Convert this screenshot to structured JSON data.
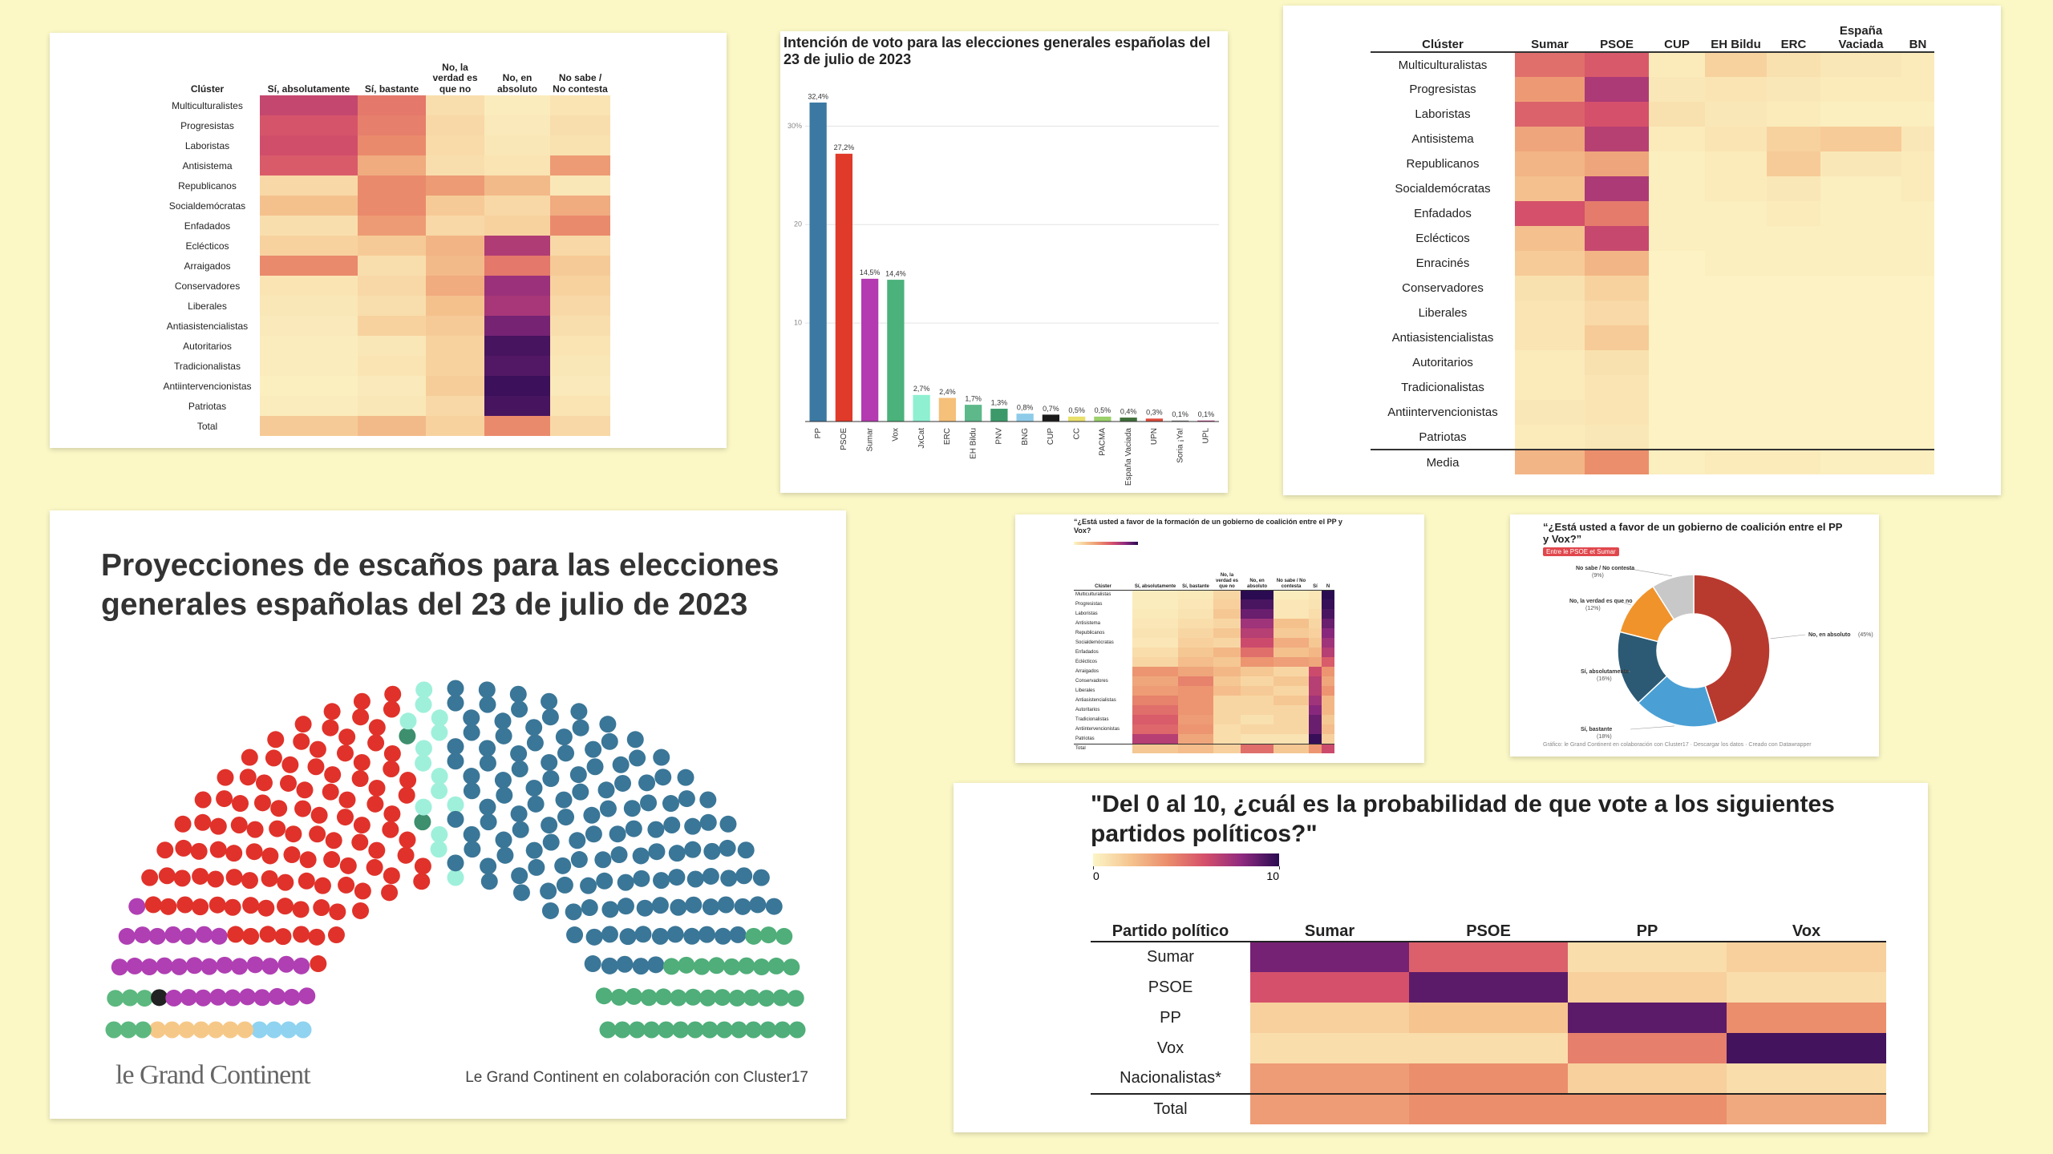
{
  "chart_data": [
    {
      "type": "heatmap",
      "row_header": "Clúster",
      "columns": [
        "Sí, absolutamente",
        "Sí, bastante",
        "No, la verdad es que no",
        "No, en absoluto",
        "No sabe / No contesta"
      ],
      "rows": [
        "Multiculturalistes",
        "Progresistas",
        "Laboristas",
        "Antisistema",
        "Republicanos",
        "Socialdemócratas",
        "Enfadados",
        "Eclécticos",
        "Arraigados",
        "Conservadores",
        "Liberales",
        "Antiasistencialistas",
        "Autoritarios",
        "Tradicionalistas",
        "Antiintervencionistas",
        "Patriotas",
        "Total"
      ],
      "values": [
        [
          55,
          40,
          8,
          3,
          6
        ],
        [
          50,
          38,
          10,
          4,
          8
        ],
        [
          52,
          35,
          9,
          5,
          7
        ],
        [
          48,
          25,
          8,
          6,
          30
        ],
        [
          10,
          35,
          30,
          20,
          5
        ],
        [
          18,
          35,
          15,
          10,
          25
        ],
        [
          8,
          30,
          10,
          12,
          35
        ],
        [
          12,
          15,
          22,
          60,
          10
        ],
        [
          35,
          8,
          20,
          40,
          15
        ],
        [
          6,
          10,
          25,
          65,
          12
        ],
        [
          5,
          8,
          18,
          62,
          10
        ],
        [
          4,
          12,
          15,
          72,
          8
        ],
        [
          3,
          5,
          12,
          80,
          6
        ],
        [
          3,
          6,
          12,
          78,
          5
        ],
        [
          2,
          4,
          14,
          82,
          4
        ],
        [
          3,
          5,
          10,
          80,
          6
        ],
        [
          15,
          20,
          12,
          35,
          10
        ]
      ],
      "color_range": [
        0,
        85
      ],
      "colors": [
        "#fcf5c7",
        "#f5c48f",
        "#eb8e6c",
        "#d5506a",
        "#8e2a7f",
        "#2a0b52"
      ]
    },
    {
      "type": "bar",
      "title": "Intención de voto para las elecciones generales españolas del 23 de julio de 2023",
      "categories": [
        "PP",
        "PSOE",
        "Sumar",
        "Vox",
        "JxCat",
        "ERC",
        "EH Bildu",
        "PNV",
        "BNG",
        "CUP",
        "CC",
        "PACMA",
        "España Vaciada",
        "UPN",
        "Soria ¡Ya!",
        "UPL"
      ],
      "values": [
        32.4,
        27.2,
        14.5,
        14.4,
        2.7,
        2.4,
        1.7,
        1.3,
        0.8,
        0.7,
        0.5,
        0.5,
        0.4,
        0.3,
        0.1,
        0.1
      ],
      "value_labels": [
        "32,4%",
        "27,2%",
        "14,5%",
        "14,4%",
        "2,7%",
        "2,4%",
        "1,7%",
        "1,3%",
        "0,8%",
        "0,7%",
        "0,5%",
        "0,5%",
        "0,4%",
        "0,3%",
        "0,1%",
        "0,1%"
      ],
      "colors": [
        "#3b79a3",
        "#e03a2a",
        "#b33ab0",
        "#4ab27a",
        "#8ef0d0",
        "#f5c07a",
        "#5db88a",
        "#3c9a6a",
        "#8ecbe8",
        "#1a1a1a",
        "#e8e06a",
        "#9bd06a",
        "#3f6e3a",
        "#e04a3a",
        "#777777",
        "#b0337a"
      ],
      "ylim": [
        0,
        35
      ],
      "yticks": [
        10,
        20,
        {
          "value": 30,
          "label": "30%"
        }
      ],
      "grid": true
    },
    {
      "type": "heatmap",
      "row_header": "Clúster",
      "columns": [
        "Sumar",
        "PSOE",
        "CUP",
        "EH Bildu",
        "ERC",
        "España Vaciada",
        "BN"
      ],
      "rows": [
        "Multiculturalistas",
        "Progresistas",
        "Laboristas",
        "Antisistema",
        "Republicanos",
        "Socialdemócratas",
        "Enfadados",
        "Eclécticos",
        "Enracinés",
        "Conservadores",
        "Liberales",
        "Antiasistencialistas",
        "Autoritarios",
        "Tradicionalistas",
        "Antiintervencionistas",
        "Patriotas",
        "Media"
      ],
      "values": [
        [
          35,
          40,
          3,
          10,
          6,
          4,
          3
        ],
        [
          25,
          50,
          4,
          5,
          4,
          3,
          3
        ],
        [
          38,
          42,
          6,
          4,
          3,
          2,
          2
        ],
        [
          22,
          48,
          3,
          5,
          10,
          12,
          4
        ],
        [
          18,
          22,
          2,
          3,
          12,
          4,
          3
        ],
        [
          15,
          50,
          2,
          3,
          4,
          2,
          3
        ],
        [
          42,
          32,
          2,
          2,
          3,
          2,
          2
        ],
        [
          15,
          45,
          2,
          2,
          2,
          2,
          2
        ],
        [
          12,
          18,
          1,
          2,
          2,
          2,
          2
        ],
        [
          6,
          10,
          1,
          1,
          1,
          1,
          1
        ],
        [
          5,
          8,
          1,
          1,
          1,
          1,
          1
        ],
        [
          5,
          12,
          1,
          1,
          1,
          1,
          1
        ],
        [
          3,
          6,
          1,
          1,
          1,
          1,
          1
        ],
        [
          3,
          5,
          1,
          1,
          1,
          1,
          1
        ],
        [
          4,
          5,
          1,
          1,
          1,
          1,
          1
        ],
        [
          3,
          4,
          1,
          1,
          1,
          1,
          1
        ],
        [
          18,
          28,
          2,
          3,
          3,
          2,
          2
        ]
      ],
      "color_range": [
        0,
        70
      ],
      "colors": [
        "#fcf5c7",
        "#f5c48f",
        "#eb8e6c",
        "#d5506a",
        "#8e2a7f",
        "#2a0b52"
      ]
    },
    {
      "type": "parliament",
      "title": "Proyecciones de escaños para las elecciones generales españolas del 23 de julio de 2023",
      "seats": [
        4,
        7,
        6,
        1,
        31,
        108,
        2,
        14,
        137,
        40
      ],
      "colors": [
        "#8fd3f0",
        "#f6c888",
        "#5cb87f",
        "#222222",
        "#b03fb3",
        "#e0322a",
        "#3d8f6e",
        "#9ff0da",
        "#3a7697",
        "#4fae79"
      ],
      "logo": "le Grand Continent",
      "credit": "Le Grand Continent en colaboración con Cluster17"
    },
    {
      "type": "heatmap",
      "title": "“¿Está usted a favor de la formación de un gobierno de coalición entre el PP y Vox?",
      "row_header": "Clúster",
      "columns": [
        "Sí, absolutamente",
        "Sí, bastante",
        "No, la verdad es que no",
        "No, en absoluto",
        "No sabe / No contesta",
        "Sí",
        "N"
      ],
      "rows": [
        "Multiculturalistas",
        "Progresistas",
        "Laboristas",
        "Antisistema",
        "Republicanos",
        "Socialdemócratas",
        "Enfadados",
        "Eclécticos",
        "Arraigados",
        "Conservadores",
        "Liberales",
        "Antiasistencialistas",
        "Autoritarios",
        "Tradicionalistas",
        "Antiintervencionistas",
        "Patriotas",
        "Total"
      ],
      "values": [
        [
          3,
          4,
          10,
          80,
          3,
          5,
          80
        ],
        [
          3,
          5,
          12,
          75,
          5,
          6,
          78
        ],
        [
          4,
          6,
          15,
          70,
          5,
          8,
          75
        ],
        [
          5,
          8,
          10,
          60,
          17,
          10,
          70
        ],
        [
          6,
          10,
          15,
          55,
          14,
          12,
          65
        ],
        [
          5,
          12,
          10,
          50,
          23,
          15,
          60
        ],
        [
          8,
          15,
          20,
          40,
          17,
          20,
          55
        ],
        [
          10,
          18,
          15,
          30,
          27,
          25,
          45
        ],
        [
          30,
          25,
          20,
          15,
          10,
          50,
          30
        ],
        [
          25,
          35,
          15,
          10,
          15,
          55,
          25
        ],
        [
          28,
          30,
          18,
          14,
          10,
          55,
          30
        ],
        [
          35,
          30,
          10,
          10,
          15,
          60,
          20
        ],
        [
          40,
          30,
          10,
          10,
          10,
          65,
          20
        ],
        [
          45,
          28,
          10,
          7,
          10,
          70,
          15
        ],
        [
          42,
          30,
          8,
          10,
          10,
          70,
          18
        ],
        [
          55,
          25,
          8,
          6,
          6,
          78,
          12
        ],
        [
          15,
          18,
          12,
          40,
          15,
          30,
          50
        ]
      ],
      "color_range": [
        0,
        80
      ],
      "colors": [
        "#fcf5c7",
        "#f5c48f",
        "#eb8e6c",
        "#d5506a",
        "#8e2a7f",
        "#2a0b52"
      ]
    },
    {
      "type": "pie",
      "donut": true,
      "title": "“¿Está usted a favor de un gobierno de coalición entre el PP y Vox?”",
      "subtitle": "Entre le PSOE et Sumar",
      "categories": [
        "No, en absoluto",
        "Sí, bastante",
        "Sí, absolutamente",
        "No, la verdad es que no",
        "No sabe / No contesta"
      ],
      "values": [
        45,
        18,
        16,
        12,
        9
      ],
      "value_labels": [
        "(45%)",
        "(18%)",
        "(16%)",
        "(12%)",
        "(9%)"
      ],
      "colors": [
        "#b83a2e",
        "#4aa0d5",
        "#2c5a74",
        "#f0932b",
        "#c8c8c8"
      ],
      "footer": "Gráfico: le Grand Continent en colaboración con Cluster17 · Descargar los datos · Creado con Datawrapper"
    },
    {
      "type": "heatmap",
      "title": "\"Del 0 al 10, ¿cuál es la probabilidad de que vote a los siguientes partidos políticos?\"",
      "row_header": "Partido político",
      "columns": [
        "Sumar",
        "PSOE",
        "PP",
        "Vox"
      ],
      "rows": [
        "Sumar",
        "PSOE",
        "PP",
        "Vox",
        "Nacionalistas*",
        "Total"
      ],
      "values": [
        [
          8.5,
          5.5,
          1,
          1.5
        ],
        [
          6,
          9,
          1.5,
          1
        ],
        [
          1.5,
          2,
          9,
          4
        ],
        [
          1,
          1,
          4.5,
          9.5
        ],
        [
          3.5,
          4,
          1.5,
          1
        ],
        [
          3.5,
          4,
          4,
          3
        ]
      ],
      "color_range": [
        0,
        10
      ],
      "legend_ticks": [
        0,
        10
      ],
      "colors": [
        "#fcf5c7",
        "#f5c48f",
        "#eb8e6c",
        "#d5506a",
        "#8e2a7f",
        "#2a0b52"
      ]
    }
  ]
}
